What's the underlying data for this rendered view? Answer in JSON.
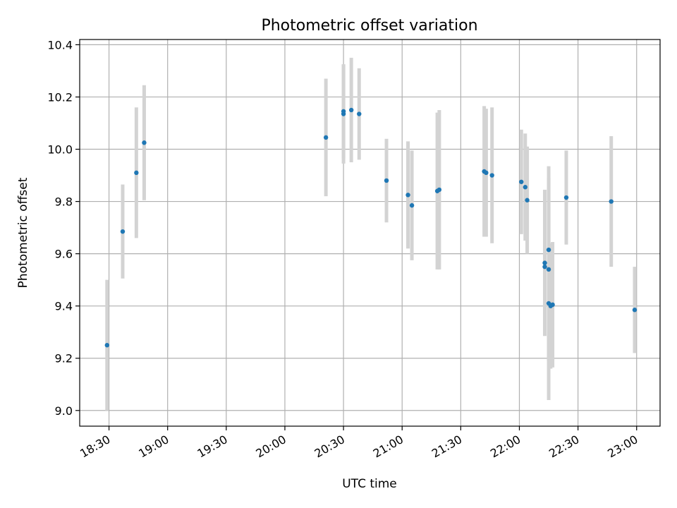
{
  "chart_data": {
    "type": "scatter",
    "title": "Photometric offset variation",
    "xlabel": "UTC time",
    "ylabel": "Photometric offset",
    "xlim": [
      "18:15",
      "23:12"
    ],
    "ylim": [
      8.94,
      10.42
    ],
    "xticks": [
      "18:30",
      "19:00",
      "19:30",
      "20:00",
      "20:30",
      "21:00",
      "21:30",
      "22:00",
      "22:30",
      "23:00"
    ],
    "yticks": [
      "9.0",
      "9.2",
      "9.4",
      "9.6",
      "9.8",
      "10.0",
      "10.2",
      "10.4"
    ],
    "grid": true,
    "colors": {
      "point": "#1f77b4",
      "errorbar": "#d3d3d3",
      "grid": "#b0b0b0"
    },
    "points": [
      {
        "x": "18:29",
        "y": 9.25,
        "yerr": 0.25
      },
      {
        "x": "18:37",
        "y": 9.685,
        "yerr": 0.18
      },
      {
        "x": "18:44",
        "y": 9.91,
        "yerr": 0.25
      },
      {
        "x": "18:48",
        "y": 10.025,
        "yerr": 0.22
      },
      {
        "x": "20:21",
        "y": 10.045,
        "yerr": 0.225
      },
      {
        "x": "20:30",
        "y": 10.145,
        "yerr": 0.18
      },
      {
        "x": "20:30",
        "y": 10.135,
        "yerr": 0.19
      },
      {
        "x": "20:34",
        "y": 10.15,
        "yerr": 0.2
      },
      {
        "x": "20:38",
        "y": 10.135,
        "yerr": 0.175
      },
      {
        "x": "20:52",
        "y": 9.88,
        "yerr": 0.16
      },
      {
        "x": "21:03",
        "y": 9.825,
        "yerr": 0.205
      },
      {
        "x": "21:05",
        "y": 9.785,
        "yerr": 0.21
      },
      {
        "x": "21:18",
        "y": 9.84,
        "yerr": 0.3
      },
      {
        "x": "21:19",
        "y": 9.845,
        "yerr": 0.305
      },
      {
        "x": "21:42",
        "y": 9.915,
        "yerr": 0.25
      },
      {
        "x": "21:43",
        "y": 9.91,
        "yerr": 0.245
      },
      {
        "x": "21:46",
        "y": 9.9,
        "yerr": 0.26
      },
      {
        "x": "22:01",
        "y": 9.875,
        "yerr": 0.2
      },
      {
        "x": "22:03",
        "y": 9.855,
        "yerr": 0.205
      },
      {
        "x": "22:04",
        "y": 9.805,
        "yerr": 0.205
      },
      {
        "x": "22:13",
        "y": 9.565,
        "yerr": 0.28
      },
      {
        "x": "22:13",
        "y": 9.55,
        "yerr": 0.26
      },
      {
        "x": "22:15",
        "y": 9.615,
        "yerr": 0.32
      },
      {
        "x": "22:15",
        "y": 9.54,
        "yerr": 0.35
      },
      {
        "x": "22:15",
        "y": 9.41,
        "yerr": 0.37
      },
      {
        "x": "22:16",
        "y": 9.4,
        "yerr": 0.24
      },
      {
        "x": "22:17",
        "y": 9.405,
        "yerr": 0.24
      },
      {
        "x": "22:24",
        "y": 9.815,
        "yerr": 0.18
      },
      {
        "x": "22:47",
        "y": 9.8,
        "yerr": 0.25
      },
      {
        "x": "22:59",
        "y": 9.385,
        "yerr": 0.165
      }
    ]
  }
}
